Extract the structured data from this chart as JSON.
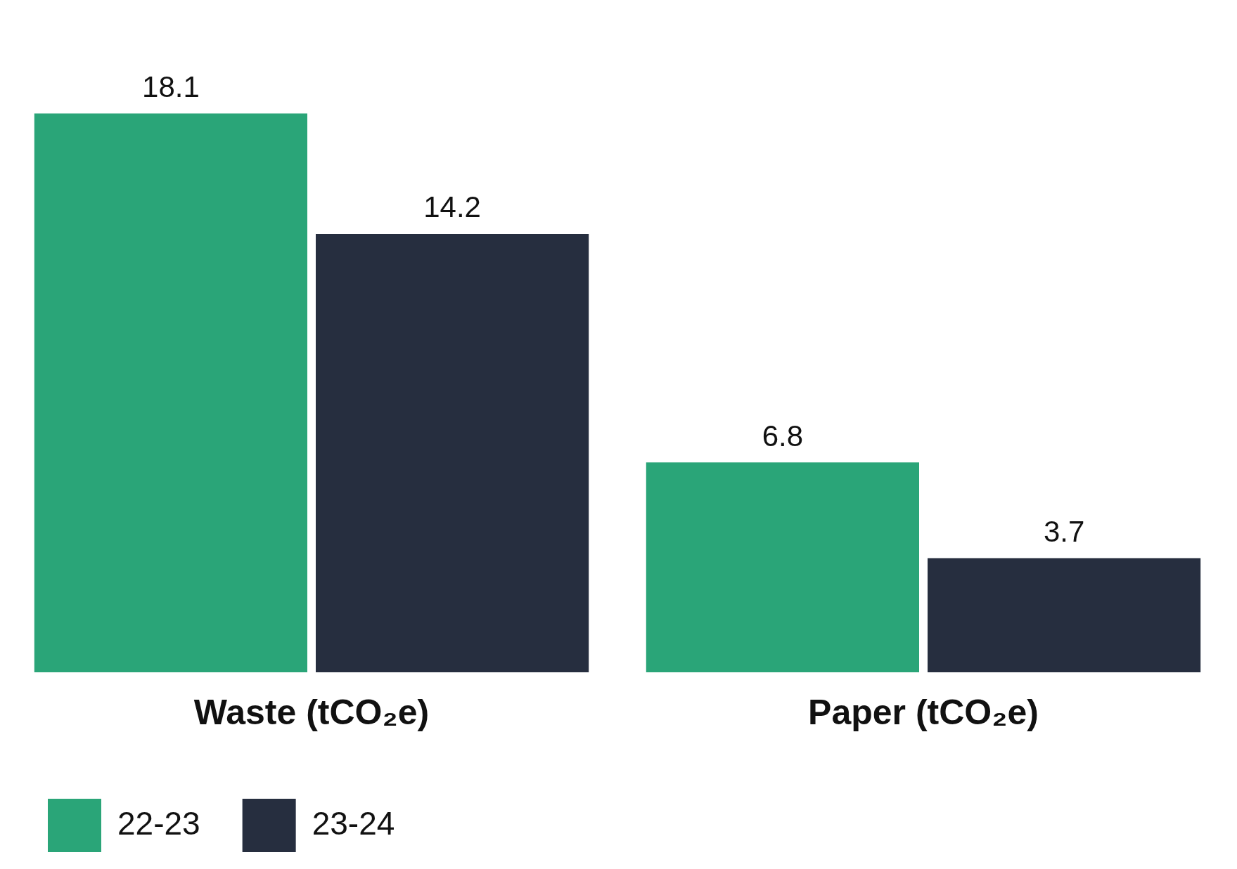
{
  "chart_data": {
    "type": "bar",
    "categories": [
      "Waste (tCO₂e)",
      "Paper (tCO₂e)"
    ],
    "series": [
      {
        "name": "22-23",
        "color": "#2aa578",
        "values": [
          18.1,
          6.8
        ]
      },
      {
        "name": "23-24",
        "color": "#262e3f",
        "values": [
          14.2,
          3.7
        ]
      }
    ],
    "data_labels": true,
    "legend": "bottom left",
    "grid": false,
    "tick_labels": "x"
  }
}
